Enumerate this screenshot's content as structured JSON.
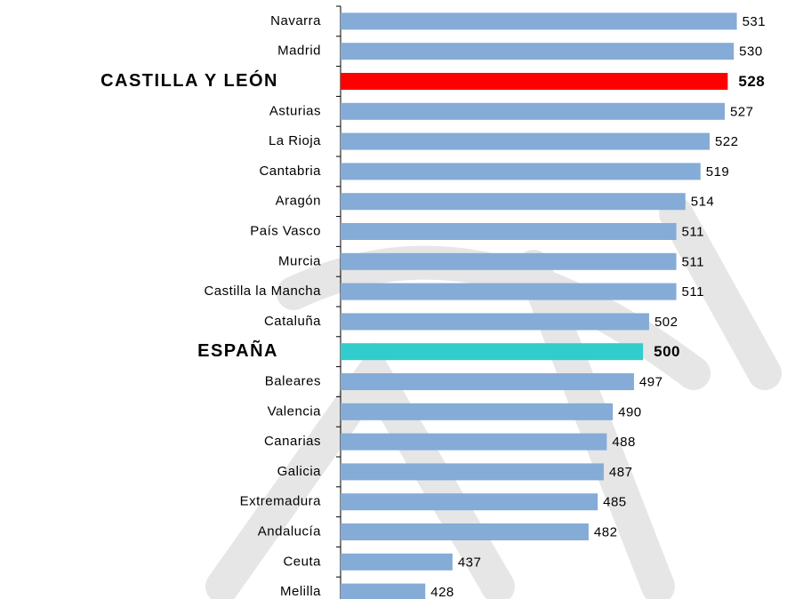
{
  "chart_data": {
    "type": "barh",
    "categories": [
      "Navarra",
      "Madrid",
      "CASTILLA Y LEÓN",
      "Asturias",
      "La Rioja",
      "Cantabria",
      "Aragón",
      "País Vasco",
      "Murcia",
      "Castilla la Mancha",
      "Cataluña",
      "ESPAÑA",
      "Baleares",
      "Valencia",
      "Canarias",
      "Galicia",
      "Extremadura",
      "Andalucía",
      "Ceuta",
      "Melilla"
    ],
    "values": [
      531,
      530,
      528,
      527,
      522,
      519,
      514,
      511,
      511,
      511,
      502,
      500,
      497,
      490,
      488,
      487,
      485,
      482,
      437,
      428
    ],
    "color": "#85abd7",
    "colors": [
      "#85abd7",
      "#85abd7",
      "#ff0000",
      "#85abd7",
      "#85abd7",
      "#85abd7",
      "#85abd7",
      "#85abd7",
      "#85abd7",
      "#85abd7",
      "#85abd7",
      "#33cccc",
      "#85abd7",
      "#85abd7",
      "#85abd7",
      "#85abd7",
      "#85abd7",
      "#85abd7",
      "#85abd7",
      "#85abd7"
    ],
    "label_colors": [
      "#000000",
      "#000000",
      "#ff0000",
      "#000000",
      "#000000",
      "#000000",
      "#000000",
      "#000000",
      "#000000",
      "#000000",
      "#000000",
      "#33cccc",
      "#000000",
      "#000000",
      "#000000",
      "#000000",
      "#000000",
      "#000000",
      "#000000",
      "#000000"
    ],
    "xlim": [
      400,
      547
    ]
  }
}
